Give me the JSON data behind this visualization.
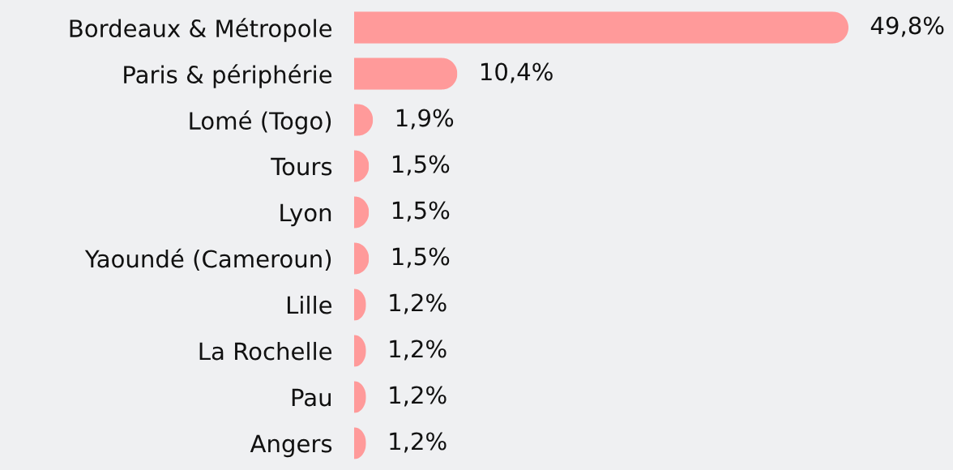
{
  "chart_data": {
    "type": "bar",
    "orientation": "horizontal",
    "tick_labels": "y",
    "categories": [
      "Bordeaux & Métropole",
      "Paris & périphérie",
      "Lomé (Togo)",
      "Tours",
      "Lyon",
      "Yaoundé (Cameroun)",
      "Lille",
      "La Rochelle",
      "Pau",
      "Angers"
    ],
    "values": [
      49.8,
      10.4,
      1.9,
      1.5,
      1.5,
      1.5,
      1.2,
      1.2,
      1.2,
      1.2
    ],
    "color": "#ff9a9a",
    "value_labels": [
      "49,8%",
      "10,4%",
      "1,9%",
      "1,5%",
      "1,5%",
      "1,5%",
      "1,2%",
      "1,2%",
      "1,2%",
      "1,2%"
    ]
  }
}
